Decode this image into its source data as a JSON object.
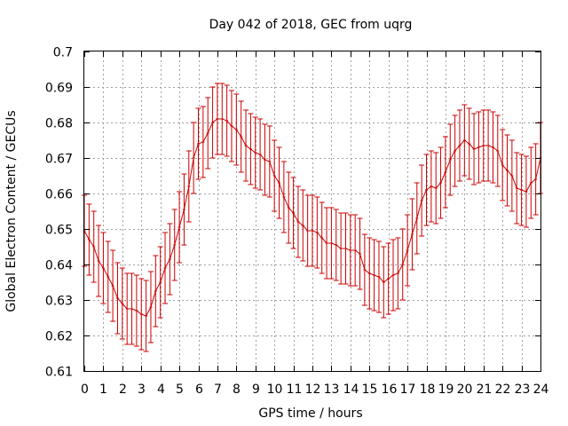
{
  "chart_data": {
    "type": "line",
    "title": "Day 042 of 2018, GEC from uqrg",
    "xlabel": "GPS time / hours",
    "ylabel": "Global Electron Content / GECUs",
    "xlim": [
      0,
      24
    ],
    "ylim": [
      0.61,
      0.7
    ],
    "xticks": [
      "0",
      "1",
      "2",
      "3",
      "4",
      "5",
      "6",
      "7",
      "8",
      "9",
      "10",
      "11",
      "12",
      "13",
      "14",
      "15",
      "16",
      "17",
      "18",
      "19",
      "20",
      "21",
      "22",
      "23",
      "24"
    ],
    "yticks": [
      "0.61",
      "0.62",
      "0.63",
      "0.64",
      "0.65",
      "0.66",
      "0.67",
      "0.68",
      "0.69",
      "0.7"
    ],
    "grid": true,
    "error_bar_halfwidth": 0.01,
    "series": [
      {
        "color": "#cc0000",
        "points": [
          [
            0.0,
            0.6495
          ],
          [
            0.25,
            0.647
          ],
          [
            0.5,
            0.645
          ],
          [
            0.75,
            0.641
          ],
          [
            1.0,
            0.639
          ],
          [
            1.25,
            0.6365
          ],
          [
            1.5,
            0.634
          ],
          [
            1.75,
            0.6305
          ],
          [
            2.0,
            0.629
          ],
          [
            2.25,
            0.6275
          ],
          [
            2.5,
            0.6275
          ],
          [
            2.75,
            0.627
          ],
          [
            3.0,
            0.626
          ],
          [
            3.25,
            0.6255
          ],
          [
            3.5,
            0.628
          ],
          [
            3.75,
            0.6325
          ],
          [
            4.0,
            0.635
          ],
          [
            4.25,
            0.639
          ],
          [
            4.5,
            0.6415
          ],
          [
            4.75,
            0.6455
          ],
          [
            5.0,
            0.6505
          ],
          [
            5.25,
            0.6555
          ],
          [
            5.5,
            0.662
          ],
          [
            5.75,
            0.67
          ],
          [
            6.0,
            0.674
          ],
          [
            6.25,
            0.6745
          ],
          [
            6.5,
            0.677
          ],
          [
            6.75,
            0.68
          ],
          [
            7.0,
            0.681
          ],
          [
            7.25,
            0.681
          ],
          [
            7.5,
            0.6805
          ],
          [
            7.75,
            0.679
          ],
          [
            8.0,
            0.678
          ],
          [
            8.25,
            0.676
          ],
          [
            8.5,
            0.6735
          ],
          [
            8.75,
            0.6725
          ],
          [
            9.0,
            0.6715
          ],
          [
            9.25,
            0.671
          ],
          [
            9.5,
            0.6695
          ],
          [
            9.75,
            0.669
          ],
          [
            10.0,
            0.665
          ],
          [
            10.25,
            0.663
          ],
          [
            10.5,
            0.659
          ],
          [
            10.75,
            0.656
          ],
          [
            11.0,
            0.6545
          ],
          [
            11.25,
            0.652
          ],
          [
            11.5,
            0.651
          ],
          [
            11.75,
            0.6495
          ],
          [
            12.0,
            0.6495
          ],
          [
            12.25,
            0.649
          ],
          [
            12.5,
            0.6475
          ],
          [
            12.75,
            0.646
          ],
          [
            13.0,
            0.646
          ],
          [
            13.25,
            0.6455
          ],
          [
            13.5,
            0.6445
          ],
          [
            13.75,
            0.6445
          ],
          [
            14.0,
            0.644
          ],
          [
            14.25,
            0.644
          ],
          [
            14.5,
            0.643
          ],
          [
            14.75,
            0.6385
          ],
          [
            15.0,
            0.6375
          ],
          [
            15.25,
            0.637
          ],
          [
            15.5,
            0.6365
          ],
          [
            15.75,
            0.635
          ],
          [
            16.0,
            0.636
          ],
          [
            16.25,
            0.637
          ],
          [
            16.5,
            0.6375
          ],
          [
            16.75,
            0.64
          ],
          [
            17.0,
            0.644
          ],
          [
            17.25,
            0.6485
          ],
          [
            17.5,
            0.653
          ],
          [
            17.75,
            0.658
          ],
          [
            18.0,
            0.661
          ],
          [
            18.25,
            0.662
          ],
          [
            18.5,
            0.6615
          ],
          [
            18.75,
            0.663
          ],
          [
            19.0,
            0.666
          ],
          [
            19.25,
            0.6695
          ],
          [
            19.5,
            0.672
          ],
          [
            19.75,
            0.6735
          ],
          [
            20.0,
            0.675
          ],
          [
            20.25,
            0.674
          ],
          [
            20.5,
            0.6725
          ],
          [
            20.75,
            0.673
          ],
          [
            21.0,
            0.6735
          ],
          [
            21.25,
            0.6735
          ],
          [
            21.5,
            0.673
          ],
          [
            21.75,
            0.672
          ],
          [
            22.0,
            0.668
          ],
          [
            22.25,
            0.6665
          ],
          [
            22.5,
            0.665
          ],
          [
            22.75,
            0.6615
          ],
          [
            23.0,
            0.661
          ],
          [
            23.25,
            0.6605
          ],
          [
            23.5,
            0.663
          ],
          [
            23.75,
            0.664
          ],
          [
            24.0,
            0.67
          ]
        ]
      }
    ]
  }
}
